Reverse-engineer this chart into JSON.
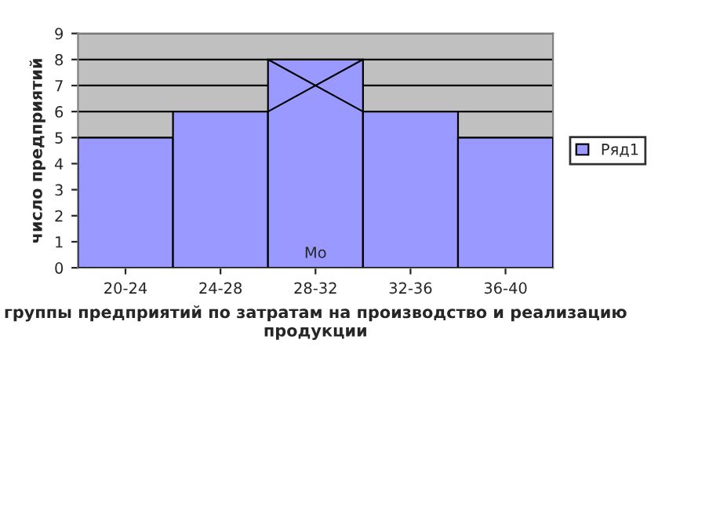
{
  "chart_data": {
    "type": "bar",
    "xlabel": "группы предприятий по затратам на производство и реализацию продукции",
    "ylabel": "число предприятий",
    "categories": [
      "20-24",
      "24-28",
      "28-32",
      "32-36",
      "36-40"
    ],
    "series": [
      {
        "name": "Ряд1",
        "color": "#9999ff",
        "values": [
          5,
          6,
          8,
          6,
          5
        ]
      }
    ],
    "ylim": [
      0,
      9
    ],
    "yticks": [
      0,
      1,
      2,
      3,
      4,
      5,
      6,
      7,
      8,
      9
    ],
    "grid": "y",
    "legend": "right",
    "annotations": [
      "Мо"
    ]
  }
}
